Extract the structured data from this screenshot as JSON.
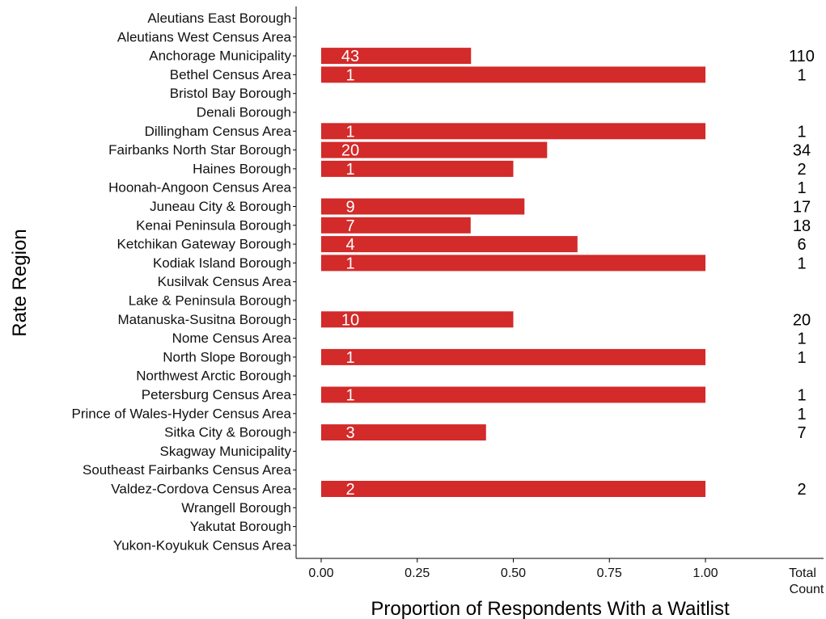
{
  "chart_data": {
    "type": "bar",
    "orientation": "horizontal",
    "title": "",
    "xlabel": "Proportion of Respondents With a Waitlist",
    "ylabel": "Rate Region",
    "xlim": [
      0,
      1.0
    ],
    "xticks": [
      0,
      0.25,
      0.5,
      0.75,
      1.0
    ],
    "xtick_labels": [
      "0.00",
      "0.25",
      "0.50",
      "0.75",
      "1.00"
    ],
    "total_column_header": [
      "Total",
      "Count"
    ],
    "bar_color": "#d32a2a",
    "grid": false,
    "categories": [
      "Aleutians East Borough",
      "Aleutians West Census Area",
      "Anchorage Municipality",
      "Bethel Census Area",
      "Bristol Bay Borough",
      "Denali Borough",
      "Dillingham Census Area",
      "Fairbanks North Star Borough",
      "Haines Borough",
      "Hoonah-Angoon Census Area",
      "Juneau City & Borough",
      "Kenai Peninsula Borough",
      "Ketchikan Gateway Borough",
      "Kodiak Island Borough",
      "Kusilvak Census Area",
      "Lake & Peninsula Borough",
      "Matanuska-Susitna Borough",
      "Nome Census Area",
      "North Slope Borough",
      "Northwest Arctic Borough",
      "Petersburg Census Area",
      "Prince of Wales-Hyder Census Area",
      "Sitka City & Borough",
      "Skagway Municipality",
      "Southeast Fairbanks Census Area",
      "Valdez-Cordova Census Area",
      "Wrangell Borough",
      "Yakutat Borough",
      "Yukon-Koyukuk Census Area"
    ],
    "values": [
      null,
      null,
      0.39,
      1.0,
      null,
      null,
      1.0,
      0.588,
      0.5,
      0,
      0.529,
      0.389,
      0.667,
      1.0,
      null,
      null,
      0.5,
      0,
      1.0,
      null,
      1.0,
      0,
      0.429,
      null,
      null,
      1.0,
      null,
      null,
      null
    ],
    "waitlist_counts": [
      null,
      null,
      "43",
      "1",
      null,
      null,
      "1",
      "20",
      "1",
      null,
      "9",
      "7",
      "4",
      "1",
      null,
      null,
      "10",
      null,
      "1",
      null,
      "1",
      null,
      "3",
      null,
      null,
      "2",
      null,
      null,
      null
    ],
    "total_counts": [
      null,
      null,
      "110",
      "1",
      null,
      null,
      "1",
      "34",
      "2",
      "1",
      "17",
      "18",
      "6",
      "1",
      null,
      null,
      "20",
      "1",
      "1",
      null,
      "1",
      "1",
      "7",
      null,
      null,
      "2",
      null,
      null,
      null
    ]
  }
}
